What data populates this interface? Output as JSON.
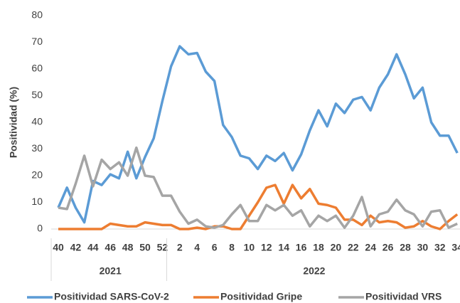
{
  "chart_data": {
    "type": "line",
    "y_label": "Positividad (%)",
    "categories": [
      "40",
      null,
      "42",
      null,
      "44",
      null,
      "46",
      null,
      "48",
      null,
      "50",
      null,
      "52",
      null,
      "2",
      null,
      "4",
      null,
      "6",
      null,
      "8",
      null,
      "10",
      null,
      "12",
      null,
      "14",
      null,
      "16",
      null,
      "18",
      null,
      "20",
      null,
      "22",
      null,
      "24",
      null,
      "26",
      null,
      "28",
      null,
      "30",
      null,
      "32",
      null,
      "34"
    ],
    "year_labels": [
      "2021",
      "2022"
    ],
    "ylim": [
      0,
      80
    ],
    "yticks": [
      0,
      10,
      20,
      30,
      40,
      50,
      60,
      70,
      80
    ],
    "legend": "bottom",
    "series": [
      {
        "name": "Positividad SARS-CoV-2",
        "color": "#5b9bd5",
        "values": [
          8,
          15.5,
          8,
          2.5,
          18,
          16.5,
          20.5,
          19,
          29,
          19,
          27,
          34,
          48,
          61,
          68.5,
          65.5,
          66,
          59,
          55.5,
          39,
          34.5,
          27.5,
          26.5,
          22.5,
          27.5,
          25.5,
          28.5,
          22,
          28,
          37,
          44.5,
          38.5,
          47,
          43.5,
          48.5,
          49.5,
          44.5,
          53,
          58,
          65.5,
          58,
          49,
          53,
          40,
          35,
          35,
          28.5
        ]
      },
      {
        "name": "Positividad Gripe",
        "color": "#ed7d31",
        "values": [
          0,
          0,
          0,
          0,
          0,
          0,
          2,
          1.5,
          1,
          1,
          2.5,
          2,
          1.5,
          1.5,
          0,
          0,
          0.5,
          0,
          1,
          1,
          0,
          0,
          5,
          10,
          15.5,
          16.5,
          9.5,
          16.5,
          11.5,
          15,
          9.5,
          9,
          8,
          3.5,
          3.5,
          1.5,
          5,
          2.5,
          3,
          2.5,
          0.5,
          1,
          3,
          1,
          0,
          3,
          5.5
        ]
      },
      {
        "name": "Positividad VRS",
        "color": "#a5a5a5",
        "values": [
          8,
          7.5,
          17,
          27.5,
          16,
          26,
          22.5,
          25,
          20,
          30.5,
          20,
          19.5,
          12.5,
          12.5,
          6.5,
          2,
          3.5,
          1,
          0.5,
          1.5,
          5.5,
          9,
          3,
          3,
          9,
          7,
          9,
          5,
          7,
          1,
          5,
          3,
          5,
          0.5,
          5,
          12,
          1,
          5.5,
          6.5,
          11,
          7,
          5.5,
          1,
          6.5,
          7,
          0.5,
          2
        ]
      }
    ]
  }
}
